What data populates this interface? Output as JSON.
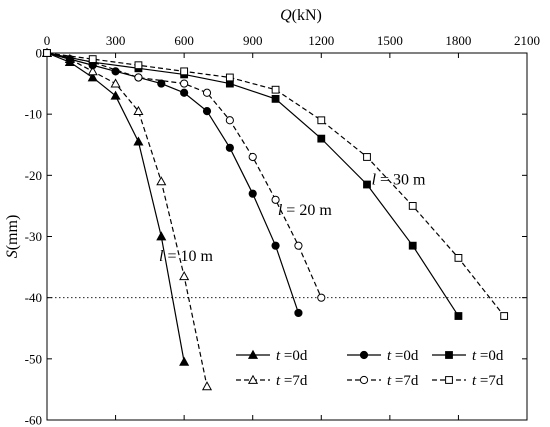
{
  "chart_data": {
    "type": "line",
    "x_axis": {
      "label": "Q(kN)",
      "label_var": "Q",
      "label_unit": "(kN)",
      "position": "top",
      "range": [
        0,
        2100
      ],
      "ticks": [
        0,
        300,
        600,
        900,
        1200,
        1500,
        1800,
        2100
      ]
    },
    "y_axis": {
      "label": "S(mm)",
      "label_var": "S",
      "label_unit": "(mm)",
      "range": [
        -60,
        0
      ],
      "ticks": [
        0,
        -10,
        -20,
        -30,
        -40,
        -50,
        -60
      ]
    },
    "reference_line": {
      "y": -40,
      "style": "dotted"
    },
    "series": [
      {
        "name": "t =0d",
        "group": "l = 10 m",
        "marker": "triangle",
        "filled": true,
        "dashed": false,
        "x": [
          0,
          100,
          200,
          300,
          400,
          500,
          600
        ],
        "y": [
          0,
          -1.5,
          -4,
          -7,
          -14.5,
          -30,
          -50.5
        ]
      },
      {
        "name": "t =7d",
        "group": "l = 10 m",
        "marker": "triangle",
        "filled": false,
        "dashed": true,
        "x": [
          0,
          100,
          200,
          300,
          400,
          500,
          600,
          700
        ],
        "y": [
          0,
          -1,
          -3,
          -5,
          -9.5,
          -21,
          -36.5,
          -54.5
        ]
      },
      {
        "name": "t =0d",
        "group": "l = 20 m",
        "marker": "circle",
        "filled": true,
        "dashed": false,
        "x": [
          0,
          100,
          200,
          300,
          400,
          500,
          600,
          700,
          800,
          900,
          1000,
          1100
        ],
        "y": [
          0,
          -1,
          -2,
          -3,
          -4,
          -5,
          -6.5,
          -9.5,
          -15.5,
          -23,
          -31.5,
          -42.5
        ]
      },
      {
        "name": "t =7d",
        "group": "l = 20 m",
        "marker": "circle",
        "filled": false,
        "dashed": true,
        "x": [
          0,
          200,
          400,
          600,
          700,
          800,
          900,
          1000,
          1100,
          1200
        ],
        "y": [
          0,
          -1.5,
          -4,
          -5,
          -6.5,
          -11,
          -17,
          -24,
          -31.5,
          -40
        ]
      },
      {
        "name": "t =0d",
        "group": "l = 30 m",
        "marker": "square",
        "filled": true,
        "dashed": false,
        "x": [
          0,
          200,
          400,
          600,
          800,
          1000,
          1200,
          1400,
          1600,
          1800
        ],
        "y": [
          0,
          -1.5,
          -2.5,
          -3.5,
          -5,
          -7.5,
          -14,
          -21.5,
          -31.5,
          -43
        ]
      },
      {
        "name": "t =7d",
        "group": "l = 30 m",
        "marker": "square",
        "filled": false,
        "dashed": true,
        "x": [
          0,
          200,
          400,
          600,
          800,
          1000,
          1200,
          1400,
          1600,
          1800,
          2000
        ],
        "y": [
          0,
          -1,
          -2,
          -3,
          -4,
          -6,
          -11,
          -17,
          -25,
          -33.5,
          -43
        ]
      }
    ],
    "annotations": [
      {
        "text": "l = 10 m",
        "var": "l",
        "rest": " = 10 m",
        "x": 490,
        "y": -34
      },
      {
        "text": "l = 20 m",
        "var": "l",
        "rest": " = 20 m",
        "x": 1010,
        "y": -26.5
      },
      {
        "text": "l = 30 m",
        "var": "l",
        "rest": " = 30 m",
        "x": 1420,
        "y": -21.5
      }
    ],
    "legend": {
      "placement": "bottom-right",
      "columns": [
        {
          "solid": "t =0d",
          "dashed": "t =7d",
          "marker": "triangle"
        },
        {
          "solid": "t =0d",
          "dashed": "t =7d",
          "marker": "circle"
        },
        {
          "solid": "t =0d",
          "dashed": "t =7d",
          "marker": "square"
        }
      ]
    }
  }
}
